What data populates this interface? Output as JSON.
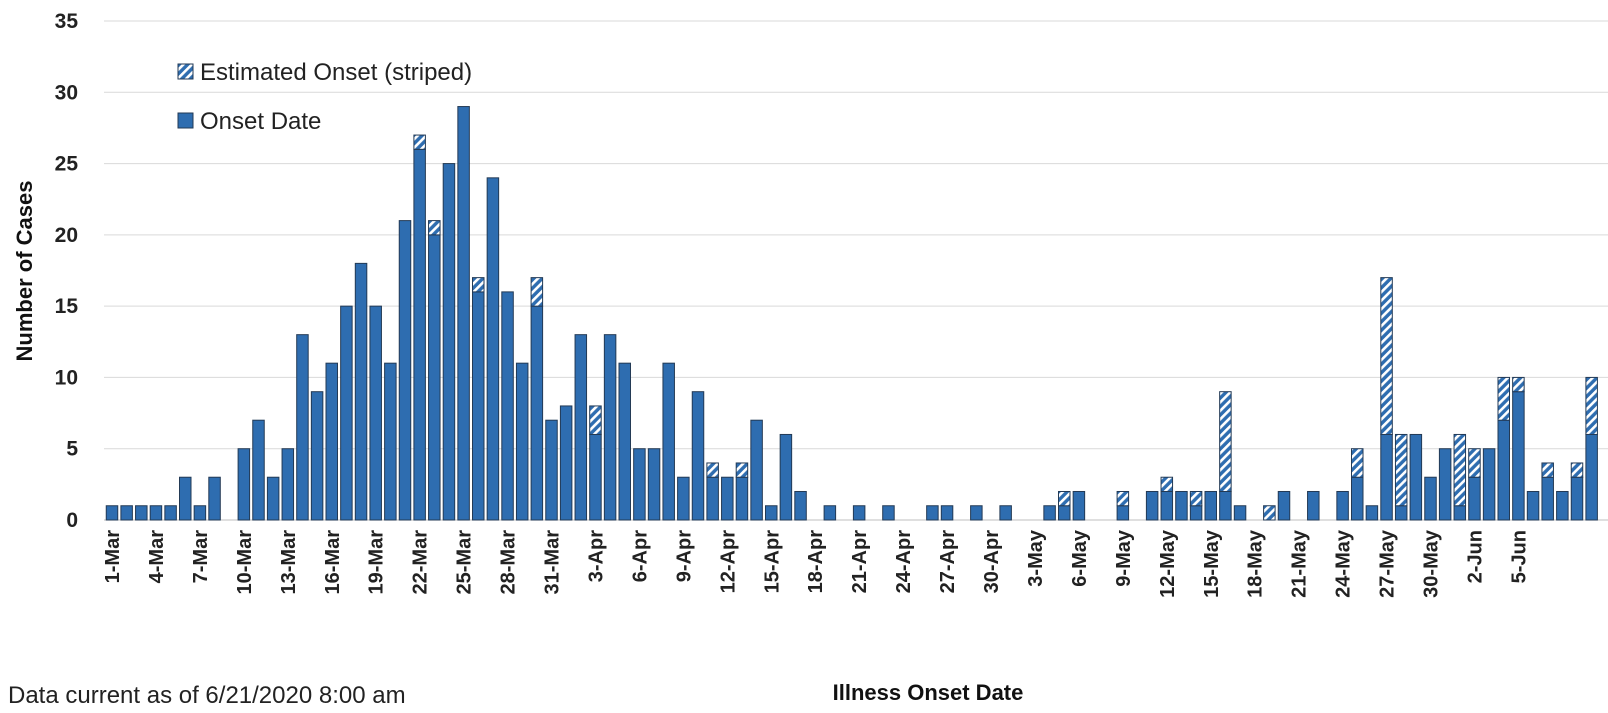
{
  "chart_data": {
    "type": "bar",
    "stacked": true,
    "xlabel": "Illness Onset Date",
    "ylabel": "Number of Cases",
    "ylim": [
      0,
      35
    ],
    "yticks": [
      0,
      5,
      10,
      15,
      20,
      25,
      30,
      35
    ],
    "grid": true,
    "legend_position": "top-left",
    "footnote": "Data current as of 6/21/2020 8:00 am",
    "tick_labels": [
      "1-Mar",
      "4-Mar",
      "7-Mar",
      "10-Mar",
      "13-Mar",
      "16-Mar",
      "19-Mar",
      "22-Mar",
      "25-Mar",
      "28-Mar",
      "31-Mar",
      "3-Apr",
      "6-Apr",
      "9-Apr",
      "12-Apr",
      "15-Apr",
      "18-Apr",
      "21-Apr",
      "24-Apr",
      "27-Apr",
      "30-Apr",
      "3-May",
      "6-May",
      "9-May",
      "12-May",
      "15-May",
      "18-May",
      "21-May",
      "24-May",
      "27-May",
      "30-May",
      "2-Jun",
      "5-Jun"
    ],
    "colors": {
      "bar": "#2e6db0",
      "bar_edge": "#233a55",
      "stripe": "#ffffff",
      "grid": "#d9d9d9"
    },
    "series": [
      {
        "name": "Onset Date",
        "values": [
          1,
          1,
          1,
          1,
          1,
          3,
          1,
          3,
          0,
          5,
          7,
          3,
          5,
          13,
          9,
          11,
          15,
          18,
          15,
          11,
          21,
          26,
          20,
          25,
          29,
          16,
          24,
          16,
          11,
          15,
          7,
          8,
          13,
          6,
          13,
          11,
          5,
          5,
          11,
          3,
          9,
          3,
          3,
          3,
          7,
          1,
          6,
          2,
          0,
          1,
          0,
          1,
          0,
          1,
          0,
          0,
          1,
          1,
          0,
          1,
          0,
          1,
          0,
          0,
          1,
          1,
          2,
          0,
          0,
          1,
          0,
          2,
          2,
          2,
          1,
          2,
          2,
          1,
          0,
          0,
          2,
          0,
          2,
          0,
          2,
          3,
          1,
          6,
          1,
          6,
          3,
          5,
          1,
          3,
          5,
          7,
          9,
          2,
          3,
          2,
          3,
          6
        ]
      },
      {
        "name": "Estimated Onset (striped)",
        "values": [
          0,
          0,
          0,
          0,
          0,
          0,
          0,
          0,
          0,
          0,
          0,
          0,
          0,
          0,
          0,
          0,
          0,
          0,
          0,
          0,
          0,
          1,
          1,
          0,
          0,
          1,
          0,
          0,
          0,
          2,
          0,
          0,
          0,
          2,
          0,
          0,
          0,
          0,
          0,
          0,
          0,
          1,
          0,
          1,
          0,
          0,
          0,
          0,
          0,
          0,
          0,
          0,
          0,
          0,
          0,
          0,
          0,
          0,
          0,
          0,
          0,
          0,
          0,
          0,
          0,
          1,
          0,
          0,
          0,
          1,
          0,
          0,
          1,
          0,
          1,
          0,
          7,
          0,
          0,
          1,
          0,
          0,
          0,
          0,
          0,
          2,
          0,
          11,
          5,
          0,
          0,
          0,
          5,
          2,
          0,
          3,
          1,
          0,
          1,
          0,
          1,
          4
        ]
      }
    ]
  }
}
